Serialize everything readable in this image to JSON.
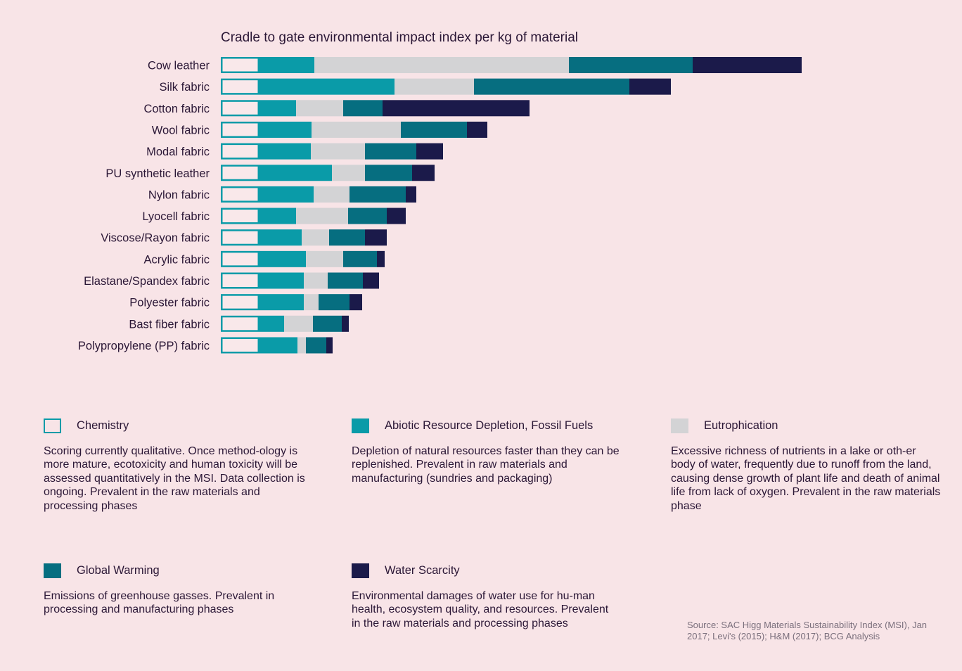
{
  "chart_data": {
    "type": "bar",
    "orientation": "horizontal",
    "stacked": true,
    "title": "Cradle to gate environmental impact index per kg of material",
    "categories": [
      "Cow leather",
      "Silk fabric",
      "Cotton fabric",
      "Wool fabric",
      "Modal fabric",
      "PU synthetic leather",
      "Nylon fabric",
      "Lyocell fabric",
      "Viscose/Rayon fabric",
      "Acrylic fabric",
      "Elastane/Spandex fabric",
      "Polyester fabric",
      "Bast fiber fabric",
      "Polypropylene (PP) fabric"
    ],
    "series": [
      {
        "name": "Chemistry",
        "color": "#0a9ba8",
        "style": "outline",
        "values": [
          55,
          55,
          55,
          55,
          55,
          55,
          55,
          55,
          55,
          55,
          55,
          55,
          55,
          55
        ]
      },
      {
        "name": "Abiotic Resource Depletion, Fossil Fuels",
        "color": "#0a9ba8",
        "values": [
          78,
          192,
          52,
          74,
          73,
          103,
          77,
          52,
          60,
          66,
          63,
          63,
          35,
          54
        ]
      },
      {
        "name": "Eutrophication",
        "color": "#d3d3d5",
        "values": [
          362,
          113,
          67,
          127,
          77,
          47,
          51,
          74,
          39,
          53,
          34,
          21,
          41,
          12
        ]
      },
      {
        "name": "Global Warming",
        "color": "#066e80",
        "values": [
          176,
          221,
          56,
          94,
          73,
          67,
          80,
          55,
          51,
          48,
          50,
          44,
          41,
          29
        ]
      },
      {
        "name": "Water Scarcity",
        "color": "#1b1a4a",
        "values": [
          155,
          59,
          209,
          29,
          38,
          32,
          15,
          27,
          31,
          11,
          23,
          18,
          10,
          9
        ]
      }
    ],
    "legend": "bottom",
    "grid": false
  },
  "legend_items": [
    {
      "name": "Chemistry",
      "description": "Scoring currently qualitative. Once method-ology is more mature, ecotoxicity and human toxicity will be assessed quantitatively in the MSI. Data collection is ongoing. Prevalent in the raw materials and processing phases"
    },
    {
      "name": "Abiotic Resource Depletion, Fossil Fuels",
      "description": "Depletion of natural resources faster than they can be replenished. Prevalent in raw materials and manufacturing (sundries and packaging)"
    },
    {
      "name": "Eutrophication",
      "description": "Excessive richness of nutrients in a lake or oth-er body of water, frequently due to runoff from the land, causing dense growth of plant life and death of animal life from lack of oxygen. Prevalent in the raw materials phase"
    },
    {
      "name": "Global Warming",
      "description": "Emissions of greenhouse gasses. Prevalent in processing and manufacturing phases"
    },
    {
      "name": "Water Scarcity",
      "description": "Environmental damages of water use for hu-man health, ecosystem quality, and resources. Prevalent in the raw materials and processing phases"
    }
  ],
  "source": "Source: SAC Higg Materials Sustainability Index (MSI), Jan 2017; Levi's (2015); H&M (2017); BCG Analysis"
}
